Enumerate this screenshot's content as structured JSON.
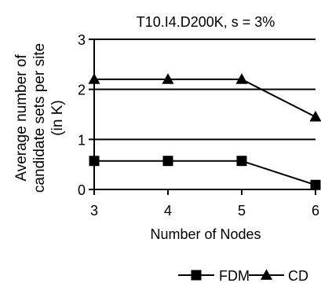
{
  "chart_data": {
    "type": "line",
    "title": "T10.I4.D200K, s = 3%",
    "xlabel": "Number of Nodes",
    "ylabel_lines": [
      "Average number of",
      "candidate sets per site",
      "(in K)"
    ],
    "x": [
      3,
      4,
      5,
      6
    ],
    "xlim": [
      3,
      6
    ],
    "ylim": [
      0,
      3
    ],
    "xticks": [
      "3",
      "4",
      "5",
      "6"
    ],
    "yticks": [
      "0",
      "1",
      "2",
      "3"
    ],
    "grid": "horizontal",
    "legend_position": "bottom",
    "series": [
      {
        "name": "FDM",
        "marker": "square",
        "color": "#000000",
        "values": [
          0.57,
          0.57,
          0.57,
          0.09
        ]
      },
      {
        "name": "CD",
        "marker": "triangle",
        "color": "#000000",
        "values": [
          2.2,
          2.2,
          2.2,
          1.45
        ]
      }
    ]
  }
}
